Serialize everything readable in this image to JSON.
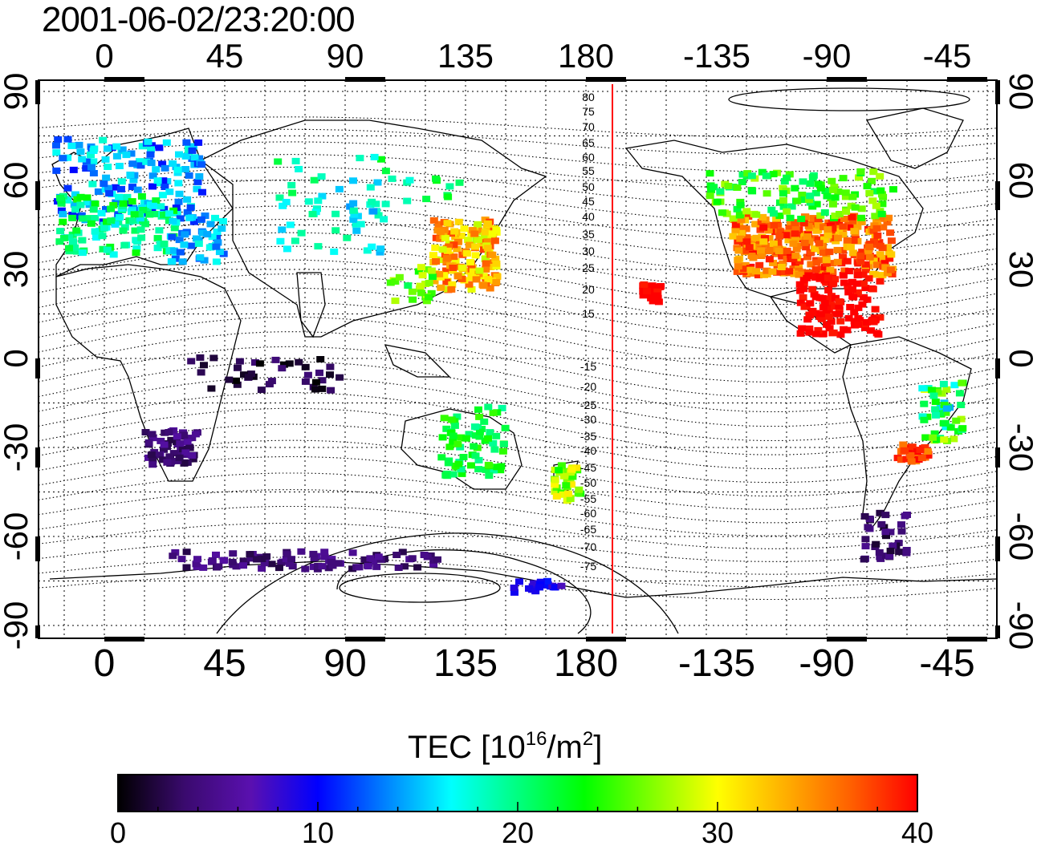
{
  "title": "2001-06-02/23:20:00",
  "colorbar": {
    "label_main": "TEC  [10",
    "label_exp": "16",
    "label_mid": "/m",
    "label_exp2": "2",
    "label_end": "]",
    "min": 0,
    "max": 40,
    "ticks": [
      "0",
      "10",
      "20",
      "30",
      "40"
    ],
    "colors": [
      "#000000",
      "#3a0a6e",
      "#5a10b0",
      "#0000ff",
      "#0080ff",
      "#00ffff",
      "#00ff80",
      "#00ff00",
      "#80ff00",
      "#ffff00",
      "#ffb000",
      "#ff6000",
      "#ff0000"
    ]
  },
  "map": {
    "lon_ticks_top": [
      "0",
      "45",
      "90",
      "135",
      "180",
      "-135",
      "-90",
      "-45"
    ],
    "lon_ticks_bottom": [
      "0",
      "45",
      "90",
      "135",
      "180",
      "-135",
      "-90",
      "-45"
    ],
    "lat_ticks_left": [
      "90",
      "60",
      "30",
      "0",
      "-30",
      "-60",
      "-90"
    ],
    "lat_ticks_right": [
      "90",
      "60",
      "30",
      "0",
      "-30",
      "-60",
      "-90"
    ],
    "magnetic_lat_labels": [
      "80",
      "75",
      "70",
      "65",
      "60",
      "55",
      "50",
      "45",
      "40",
      "35",
      "30",
      "25",
      "20",
      "15",
      "-15",
      "-20",
      "-25",
      "-30",
      "-35",
      "-40",
      "-45",
      "-50",
      "-55",
      "-60",
      "-65",
      "-70",
      "-75"
    ],
    "terminator_line_color": "#ff0000",
    "grid": "dotted"
  }
}
